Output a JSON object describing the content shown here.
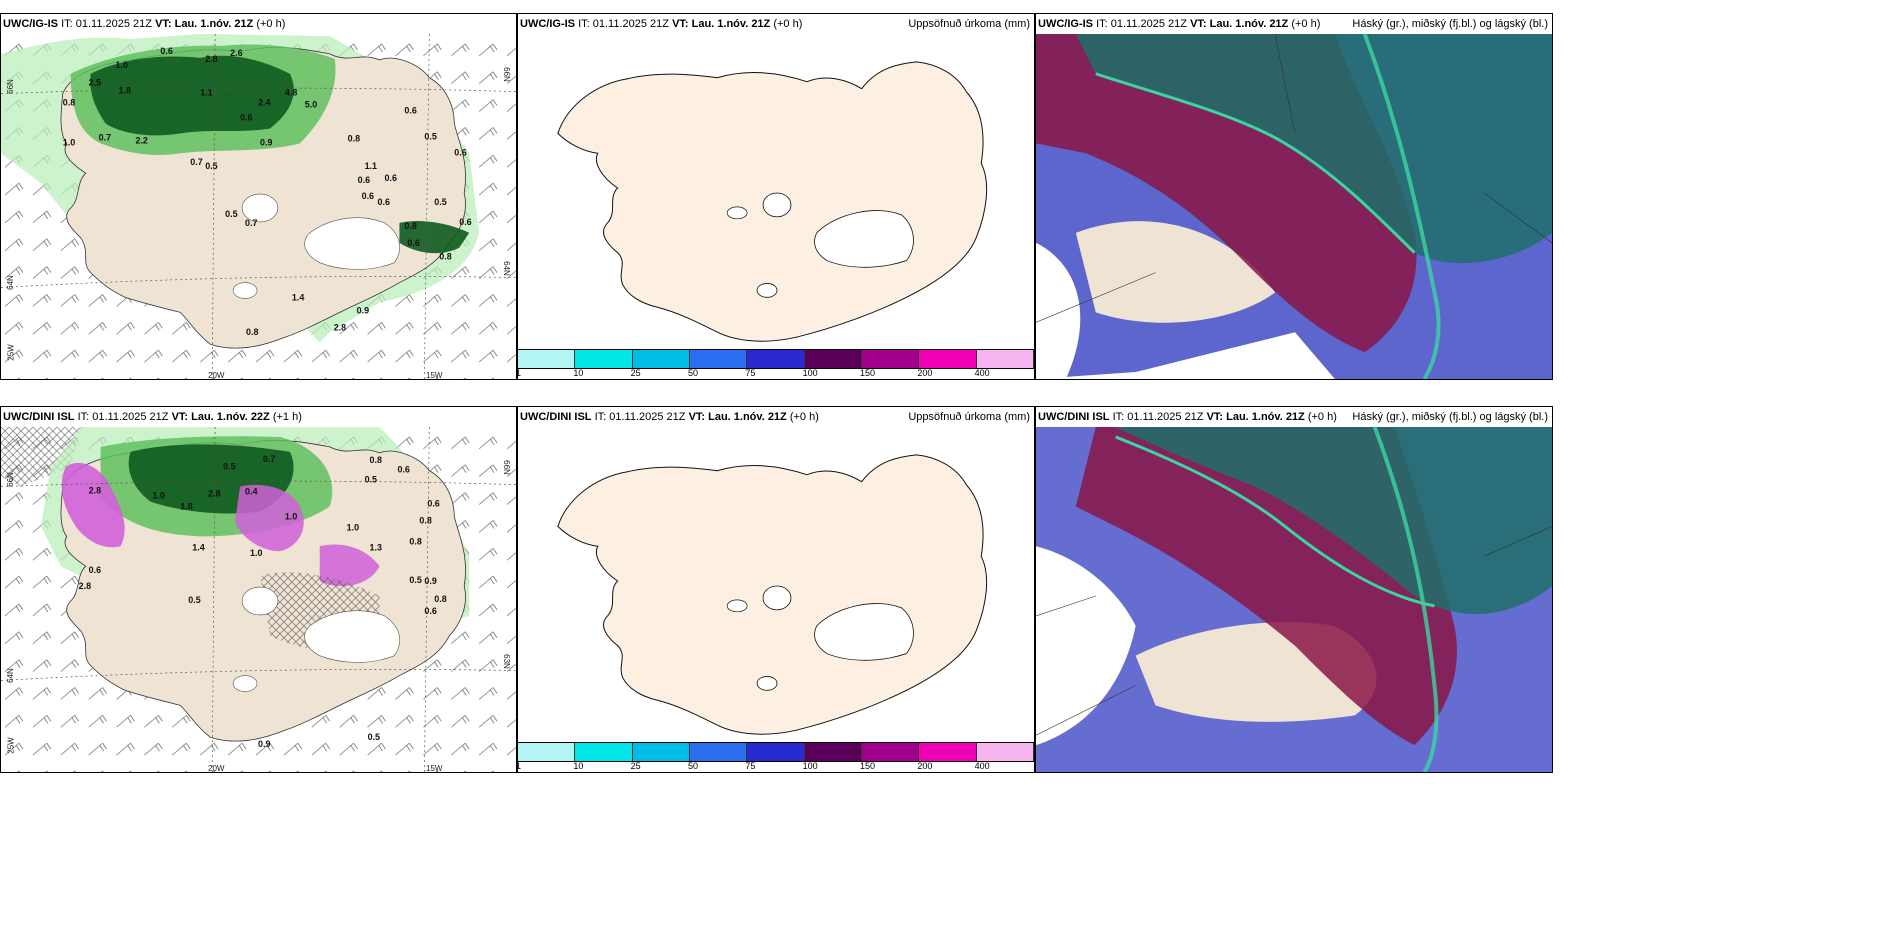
{
  "panels": {
    "p1": {
      "model": "UWC/IG-IS",
      "it_label": "IT:",
      "it_value": "01.11.2025 21Z",
      "vt_label": "VT:",
      "vt_value": "Lau. 1.nóv. 21Z",
      "lead": "(+0 h)"
    },
    "p2": {
      "model": "UWC/IG-IS",
      "it_label": "IT:",
      "it_value": "01.11.2025 21Z",
      "vt_label": "VT:",
      "vt_value": "Lau. 1.nóv. 21Z",
      "lead": "(+0 h)",
      "right_title": "Uppsöfnuð úrkoma (mm)"
    },
    "p3": {
      "model": "UWC/IG-IS",
      "it_label": "IT:",
      "it_value": "01.11.2025 21Z",
      "vt_label": "VT:",
      "vt_value": "Lau. 1.nóv. 21Z",
      "lead": "(+0 h)",
      "right_title": "Háský (gr.), miðský (fj.bl.) og lágský (bl.)"
    },
    "p4": {
      "model": "UWC/DINI ISL",
      "it_label": "IT:",
      "it_value": "01.11.2025 21Z",
      "vt_label": "VT:",
      "vt_value": "Lau. 1.nóv. 22Z",
      "lead": "(+1 h)"
    },
    "p5": {
      "model": "UWC/DINI ISL",
      "it_label": "IT:",
      "it_value": "01.11.2025 21Z",
      "vt_label": "VT:",
      "vt_value": "Lau. 1.nóv. 21Z",
      "lead": "(+0 h)",
      "right_title": "Uppsöfnuð úrkoma (mm)"
    },
    "p6": {
      "model": "UWC/DINI ISL",
      "it_label": "IT:",
      "it_value": "01.11.2025 21Z",
      "vt_label": "VT:",
      "vt_value": "Lau. 1.nóv. 21Z",
      "lead": "(+0 h)",
      "right_title": "Háský (gr.), miðský (fj.bl.) og lágský (bl.)"
    }
  },
  "axes": {
    "lat_66": "66N",
    "lat_64": "64N",
    "lat_63": "63N",
    "lon_25": "25W",
    "lon_20": "20W",
    "lon_15": "15W"
  },
  "colorbar": {
    "ticks": [
      "1",
      "10",
      "25",
      "50",
      "75",
      "100",
      "150",
      "200",
      "400"
    ],
    "colors": [
      "#b3f5f5",
      "#00e5e5",
      "#00bde6",
      "#2a6ef0",
      "#2a2ad2",
      "#5a005a",
      "#a0008c",
      "#f000b4",
      "#f5b4f0"
    ]
  },
  "colors": {
    "land": "#efe3d4",
    "sea": "#ffffff",
    "precip_light": "#b8eeb8",
    "precip_mid": "#5fbf5f",
    "precip_dark": "#0f5a1f",
    "snow": "#d060d8",
    "sea_cloud": "#4a55c8",
    "mid_cloud": "#8a1546",
    "high_cloud": "#1f6f6a",
    "land_plain": "#fdf0e2"
  },
  "labels_top": [
    {
      "t": "0.6",
      "x": 160,
      "y": 20
    },
    {
      "t": "2.6",
      "x": 230,
      "y": 22
    },
    {
      "t": "2.8",
      "x": 205,
      "y": 28
    },
    {
      "t": "1.0",
      "x": 115,
      "y": 34
    },
    {
      "t": "2.5",
      "x": 88,
      "y": 52
    },
    {
      "t": "1.8",
      "x": 118,
      "y": 60
    },
    {
      "t": "0.8",
      "x": 62,
      "y": 72
    },
    {
      "t": "1.1",
      "x": 200,
      "y": 62
    },
    {
      "t": "2.4",
      "x": 258,
      "y": 72
    },
    {
      "t": "4.8",
      "x": 285,
      "y": 62
    },
    {
      "t": "0.6",
      "x": 240,
      "y": 87
    },
    {
      "t": "5.0",
      "x": 305,
      "y": 74
    },
    {
      "t": "0.7",
      "x": 98,
      "y": 107
    },
    {
      "t": "2.2",
      "x": 135,
      "y": 110
    },
    {
      "t": "0.9",
      "x": 260,
      "y": 112
    },
    {
      "t": "0.8",
      "x": 348,
      "y": 108
    },
    {
      "t": "0.6",
      "x": 405,
      "y": 80
    },
    {
      "t": "0.5",
      "x": 425,
      "y": 106
    },
    {
      "t": "1.0",
      "x": 62,
      "y": 112
    },
    {
      "t": "0.7",
      "x": 190,
      "y": 132
    },
    {
      "t": "0.5",
      "x": 205,
      "y": 136
    },
    {
      "t": "1.1",
      "x": 365,
      "y": 136
    },
    {
      "t": "0.6",
      "x": 358,
      "y": 150
    },
    {
      "t": "0.6",
      "x": 385,
      "y": 148
    },
    {
      "t": "0.6",
      "x": 455,
      "y": 122
    },
    {
      "t": "0.5",
      "x": 225,
      "y": 184
    },
    {
      "t": "0.7",
      "x": 245,
      "y": 193
    },
    {
      "t": "0.6",
      "x": 362,
      "y": 166
    },
    {
      "t": "0.6",
      "x": 378,
      "y": 172
    },
    {
      "t": "0.5",
      "x": 435,
      "y": 172
    },
    {
      "t": "0.8",
      "x": 405,
      "y": 196
    },
    {
      "t": "0.6",
      "x": 408,
      "y": 213
    },
    {
      "t": "0.6",
      "x": 460,
      "y": 192
    },
    {
      "t": "0.8",
      "x": 440,
      "y": 227
    },
    {
      "t": "1.4",
      "x": 292,
      "y": 268
    },
    {
      "t": "0.9",
      "x": 357,
      "y": 281
    },
    {
      "t": "0.8",
      "x": 246,
      "y": 303
    },
    {
      "t": "2.8",
      "x": 334,
      "y": 298
    }
  ],
  "labels_bottom": [
    {
      "t": "0.7",
      "x": 263,
      "y": 35
    },
    {
      "t": "0.5",
      "x": 223,
      "y": 43
    },
    {
      "t": "2.8",
      "x": 88,
      "y": 67
    },
    {
      "t": "1.0",
      "x": 152,
      "y": 72
    },
    {
      "t": "1.8",
      "x": 180,
      "y": 83
    },
    {
      "t": "2.8",
      "x": 208,
      "y": 70
    },
    {
      "t": "0.4",
      "x": 245,
      "y": 68
    },
    {
      "t": "1.0",
      "x": 285,
      "y": 93
    },
    {
      "t": "0.8",
      "x": 370,
      "y": 36
    },
    {
      "t": "0.5",
      "x": 365,
      "y": 56
    },
    {
      "t": "0.6",
      "x": 398,
      "y": 46
    },
    {
      "t": "0.6",
      "x": 428,
      "y": 80
    },
    {
      "t": "0.8",
      "x": 420,
      "y": 97
    },
    {
      "t": "1.0",
      "x": 347,
      "y": 104
    },
    {
      "t": "0.8",
      "x": 410,
      "y": 118
    },
    {
      "t": "1.4",
      "x": 192,
      "y": 124
    },
    {
      "t": "1.0",
      "x": 250,
      "y": 130
    },
    {
      "t": "1.3",
      "x": 370,
      "y": 124
    },
    {
      "t": "0.5",
      "x": 410,
      "y": 157
    },
    {
      "t": "0.9",
      "x": 425,
      "y": 158
    },
    {
      "t": "0.8",
      "x": 435,
      "y": 176
    },
    {
      "t": "0.6",
      "x": 425,
      "y": 188
    },
    {
      "t": "0.6",
      "x": 88,
      "y": 147
    },
    {
      "t": "2.8",
      "x": 78,
      "y": 163
    },
    {
      "t": "0.5",
      "x": 188,
      "y": 177
    },
    {
      "t": "0.9",
      "x": 258,
      "y": 322
    },
    {
      "t": "0.5",
      "x": 368,
      "y": 315
    }
  ]
}
